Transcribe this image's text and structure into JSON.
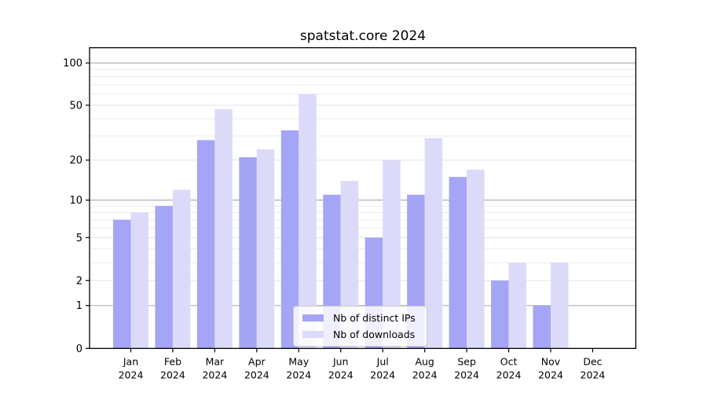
{
  "chart_data": {
    "type": "bar",
    "title": "spatstat.core 2024",
    "categories": [
      "Jan 2024",
      "Feb 2024",
      "Mar 2024",
      "Apr 2024",
      "May 2024",
      "Jun 2024",
      "Jul 2024",
      "Aug 2024",
      "Sep 2024",
      "Oct 2024",
      "Nov 2024",
      "Dec 2024"
    ],
    "series": [
      {
        "name": "Nb of distinct IPs",
        "color": "#a5a5f6",
        "values": [
          7,
          9,
          28,
          21,
          33,
          11,
          5,
          11,
          15,
          2,
          1,
          0
        ]
      },
      {
        "name": "Nb of downloads",
        "color": "#dbdbf9",
        "values": [
          8,
          12,
          47,
          24,
          60,
          14,
          20,
          29,
          17,
          3,
          3,
          0
        ]
      }
    ],
    "xlabel": "",
    "ylabel": "",
    "yscale": "log1p",
    "ylim": [
      0,
      128
    ],
    "ytick_values": [
      0,
      1,
      2,
      5,
      10,
      20,
      50,
      100
    ],
    "ytick_labels": [
      "0",
      "1",
      "2",
      "5",
      "10",
      "20",
      "50",
      "100"
    ],
    "minor_gridline_values": [
      3,
      4,
      6,
      7,
      8,
      9,
      30,
      40,
      60,
      70,
      80,
      90,
      150
    ],
    "grid": "on",
    "legend_position": "lower center inside plot",
    "colors": {
      "bar_dark": "#a5a5f6",
      "bar_light": "#dbdbf9",
      "grid_major_decade": "#a8a8a8",
      "grid_major_other": "#e2e2e6",
      "grid_minor": "#ebebee",
      "axis": "#000000",
      "legend_border": "#cccccc"
    }
  }
}
